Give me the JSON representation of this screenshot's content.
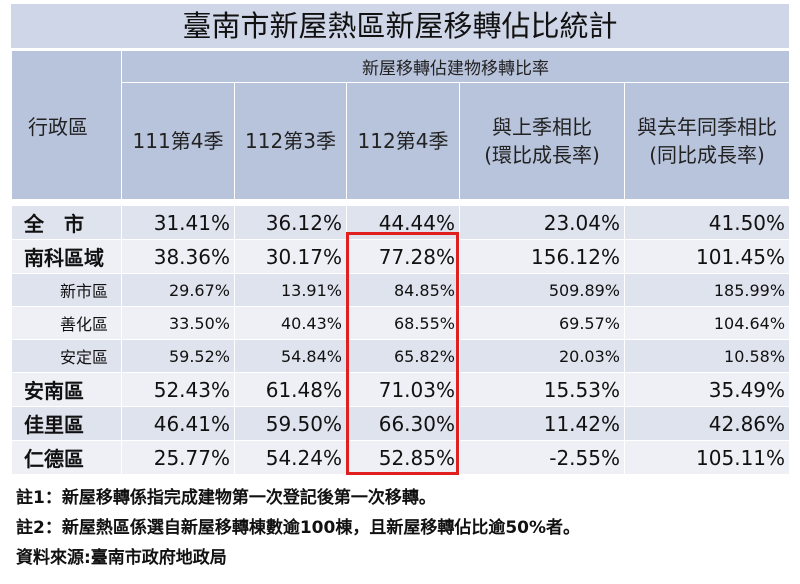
{
  "title": "臺南市新屋熱區新屋移轉佔比統計",
  "table": {
    "district_header": "行政區",
    "group_header": "新屋移轉佔建物移轉比率",
    "columns": [
      {
        "label": "111第4季",
        "sub": ""
      },
      {
        "label": "112第3季",
        "sub": ""
      },
      {
        "label": "112第4季",
        "sub": ""
      },
      {
        "label": "與上季相比",
        "sub": "(環比成長率)"
      },
      {
        "label": "與去年同季相比",
        "sub": "(同比成長率)"
      }
    ],
    "rows": [
      {
        "name": "全　市",
        "values": [
          "31.41%",
          "36.12%",
          "44.44%",
          "23.04%",
          "41.50%"
        ]
      },
      {
        "name": "南科區域",
        "values": [
          "38.36%",
          "30.17%",
          "77.28%",
          "156.12%",
          "101.45%"
        ]
      },
      {
        "name": "新市區",
        "values": [
          "29.67%",
          "13.91%",
          "84.85%",
          "509.89%",
          "185.99%"
        ]
      },
      {
        "name": "善化區",
        "values": [
          "33.50%",
          "40.43%",
          "68.55%",
          "69.57%",
          "104.64%"
        ]
      },
      {
        "name": "安定區",
        "values": [
          "59.52%",
          "54.84%",
          "65.82%",
          "20.03%",
          "10.58%"
        ]
      },
      {
        "name": "安南區",
        "values": [
          "52.43%",
          "61.48%",
          "71.03%",
          "15.53%",
          "35.49%"
        ]
      },
      {
        "name": "佳里區",
        "values": [
          "46.41%",
          "59.50%",
          "66.30%",
          "11.42%",
          "42.86%"
        ]
      },
      {
        "name": "仁德區",
        "values": [
          "25.77%",
          "54.24%",
          "52.85%",
          "-2.55%",
          "105.11%"
        ]
      }
    ]
  },
  "notes": [
    "註1：新屋移轉係指完成建物第一次登記後第一次移轉。",
    "註2：新屋熱區係選自新屋移轉棟數逾100棟，且新屋移轉佔比逾50%者。",
    "資料來源:臺南市政府地政局"
  ],
  "colors": {
    "header_bg": "#b8c3dc",
    "title_bg": "#cfd6e8",
    "row_a": "#dfe3ee",
    "row_b": "#eef0f6",
    "highlight": "#e01f1f"
  }
}
